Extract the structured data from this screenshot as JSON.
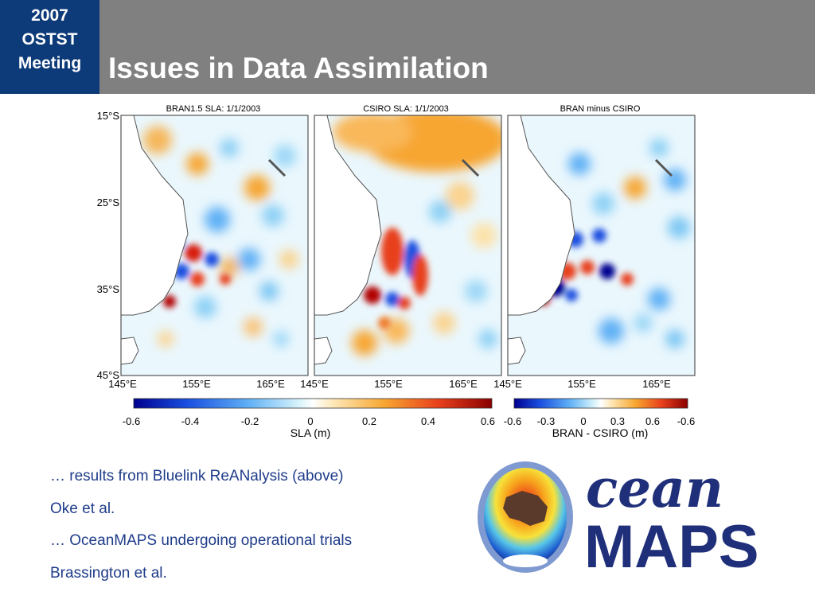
{
  "header": {
    "badge_lines": [
      "2007",
      "OSTST",
      "Meeting"
    ],
    "title": "Issues in Data Assimilation",
    "bar_color": "#808080",
    "badge_color": "#0d3a78"
  },
  "figure": {
    "panels": [
      {
        "title": "BRAN1.5 SLA: 1/1/2003"
      },
      {
        "title": "CSIRO SLA: 1/1/2003"
      },
      {
        "title": "BRAN minus CSIRO"
      }
    ],
    "lat_ticks": [
      "15°S",
      "25°S",
      "35°S",
      "45°S"
    ],
    "lon_ticks": [
      "145°E",
      "155°E",
      "165°E"
    ],
    "colorbar_sla": {
      "ticks": [
        "-0.6",
        "-0.4",
        "-0.2",
        "0",
        "0.2",
        "0.4",
        "0.6"
      ],
      "label": "SLA (m)"
    },
    "colorbar_diff": {
      "ticks": [
        "-0.6",
        "-0.3",
        "0",
        "0.3",
        "0.6",
        "-0.6"
      ],
      "label": "BRAN - CSIRO (m)"
    }
  },
  "captions": [
    "… results from Bluelink ReANalysis (above)",
    "Oke et al.",
    "… OceanMAPS undergoing operational trials",
    "Brassington et al."
  ],
  "logo": {
    "word_top": "cean",
    "word_bottom": "MAPS",
    "color": "#1f2f7a",
    "icon": "globe-icon"
  }
}
